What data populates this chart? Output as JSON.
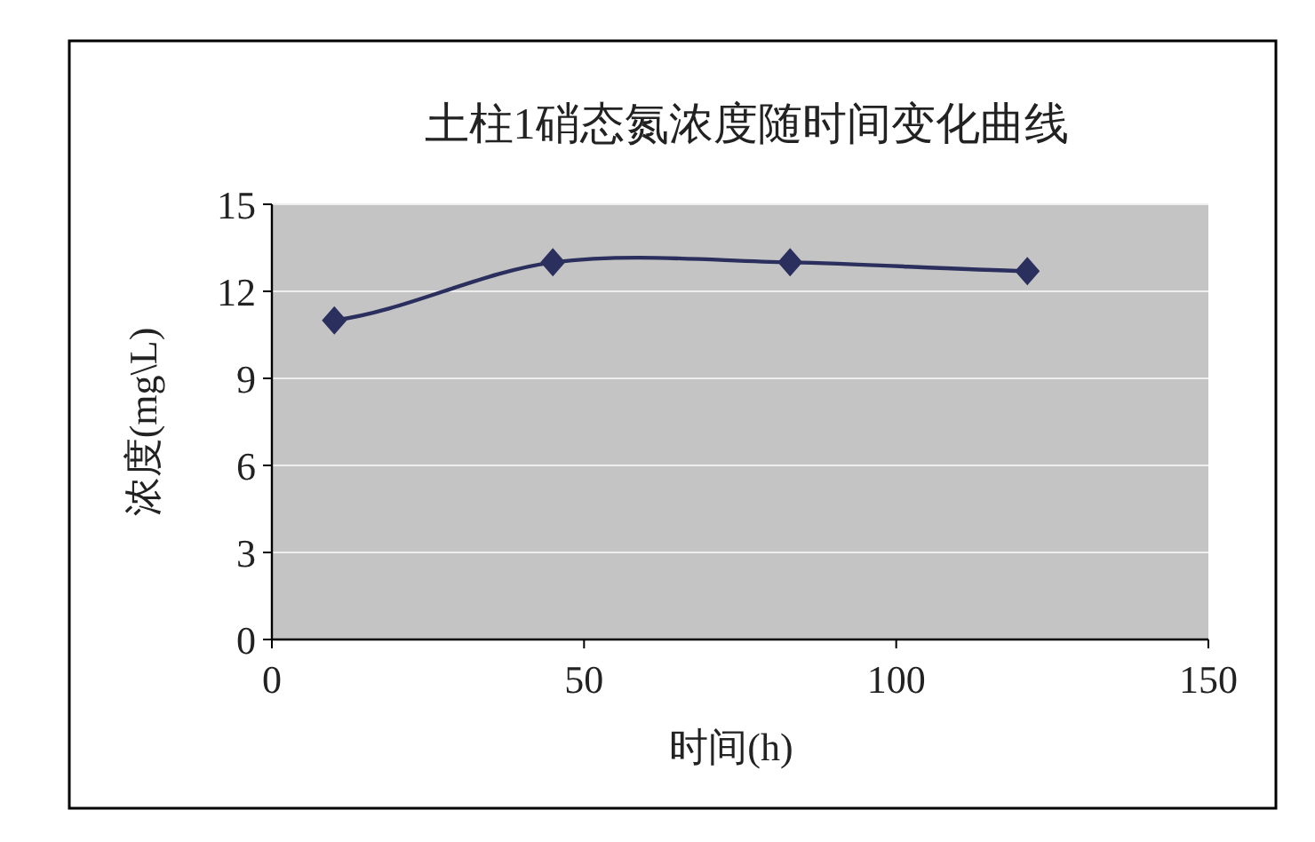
{
  "chart_data": {
    "type": "line",
    "title": "土柱1硝态氮浓度随时间变化曲线",
    "xlabel": "时间(h)",
    "ylabel": "浓度(mg\\L)",
    "x": [
      10,
      45,
      83,
      121
    ],
    "series": [
      {
        "color": "#2b2f5e",
        "values": [
          11.0,
          13.0,
          13.0,
          12.7
        ]
      }
    ],
    "xlim": [
      0,
      150
    ],
    "ylim": [
      0,
      15
    ],
    "xticks": [
      0,
      50,
      100,
      150
    ],
    "yticks": [
      0,
      3,
      6,
      9,
      12,
      15
    ],
    "grid": "y",
    "marker": "diamond",
    "line_style": "solid"
  }
}
